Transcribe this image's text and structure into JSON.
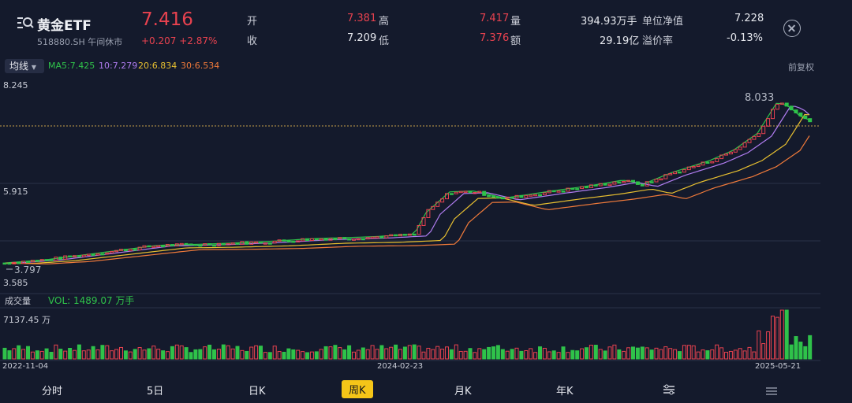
{
  "header": {
    "title": "黄金ETF",
    "code": "518880.SH 午间休市",
    "price": "7.416",
    "change": "+0.207 +2.87%",
    "stats": [
      {
        "label": "开",
        "value": "7.381"
      },
      {
        "label": "高",
        "value": "7.417"
      },
      {
        "label": "量",
        "value": "394.93万手"
      },
      {
        "label": "单位净值",
        "value": "7.228"
      },
      {
        "label": "收",
        "value": "7.209"
      },
      {
        "label": "低",
        "value": "7.376"
      },
      {
        "label": "额",
        "value": "29.19亿"
      },
      {
        "label": "溢价率",
        "value": "-0.13%"
      }
    ]
  },
  "indicator": {
    "button": "均线",
    "ma5": "MA5:7.425",
    "ma10": "10:7.279",
    "ma20": "20:6.834",
    "ma30": "30:6.534",
    "adjust": "前复权",
    "colors": {
      "ma5": "#2fc24a",
      "ma10": "#b07cf0",
      "ma20": "#e8c030",
      "ma30": "#f07a3a"
    }
  },
  "chart_data": {
    "type": "candlestick",
    "y_ticks": [
      "8.245",
      "5.915",
      "3.585"
    ],
    "ylim": [
      3.585,
      8.245
    ],
    "high_label": "8.033",
    "low_label": "3.797",
    "x_labels": [
      "2022-11-04",
      "2024-02-23",
      "2025-05-21"
    ],
    "volume_label": "成交量",
    "vol": "VOL: 1489.07 万手",
    "vol_max": "7137.45 万"
  },
  "tabs": [
    "分时",
    "5日",
    "日K",
    "周K",
    "月K",
    "年K"
  ],
  "active_tab": "周K",
  "icons": {
    "settings": "sliders-icon",
    "menu": "menu-icon",
    "close": "close-icon",
    "search": "search-icon"
  }
}
